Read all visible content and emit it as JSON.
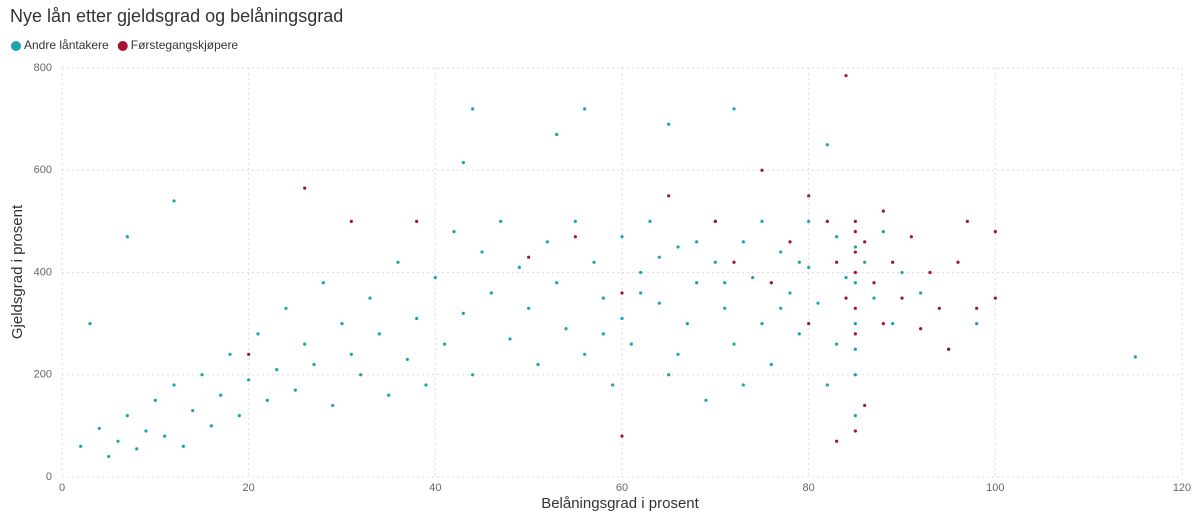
{
  "chart_data": {
    "type": "scatter",
    "title": "Nye lån etter gjeldsgrad og belåningsgrad",
    "x_label": "Belåningsgrad i prosent",
    "y_label": "Gjeldsgrad i prosent",
    "xlim": [
      0,
      120
    ],
    "xticks": [
      0,
      20,
      40,
      60,
      80,
      100,
      120
    ],
    "ylim": [
      0,
      800
    ],
    "yticks": [
      0,
      200,
      400,
      600,
      800
    ],
    "grid": true,
    "series": [
      {
        "name": "Andre låntakere",
        "color": "#19a4b4",
        "x": [
          2,
          4,
          5,
          6,
          7,
          8,
          9,
          10,
          11,
          12,
          13,
          14,
          15,
          16,
          17,
          18,
          19,
          20,
          21,
          22,
          23,
          24,
          25,
          26,
          27,
          28,
          29,
          30,
          31,
          32,
          33,
          34,
          35,
          36,
          37,
          38,
          39,
          40,
          41,
          42,
          43,
          44,
          45,
          46,
          47,
          48,
          49,
          50,
          51,
          52,
          53,
          54,
          55,
          56,
          57,
          58,
          59,
          60,
          60,
          61,
          62,
          63,
          64,
          65,
          66,
          67,
          68,
          69,
          70,
          70,
          71,
          72,
          73,
          74,
          75,
          75,
          76,
          77,
          78,
          79,
          80,
          80,
          81,
          82,
          83,
          84,
          85,
          85,
          85,
          85,
          85,
          85,
          86,
          87,
          88,
          89,
          90,
          92,
          95,
          98,
          115,
          44,
          56,
          72,
          65,
          43,
          53,
          82,
          12,
          7,
          3,
          62,
          58,
          66,
          68,
          77,
          73,
          83,
          79,
          64,
          71
        ],
        "values": [
          60,
          95,
          40,
          70,
          120,
          55,
          90,
          150,
          80,
          180,
          60,
          130,
          200,
          100,
          160,
          240,
          120,
          190,
          280,
          150,
          210,
          330,
          170,
          260,
          220,
          380,
          140,
          300,
          240,
          200,
          350,
          280,
          160,
          420,
          230,
          310,
          180,
          390,
          260,
          480,
          320,
          200,
          440,
          360,
          500,
          270,
          410,
          330,
          220,
          460,
          380,
          290,
          500,
          240,
          420,
          350,
          180,
          470,
          310,
          260,
          400,
          500,
          340,
          200,
          450,
          300,
          380,
          150,
          500,
          420,
          330,
          260,
          460,
          390,
          500,
          300,
          220,
          440,
          360,
          280,
          500,
          410,
          340,
          180,
          470,
          390,
          300,
          250,
          450,
          120,
          380,
          200,
          420,
          350,
          480,
          300,
          400,
          360,
          250,
          300,
          235,
          720,
          720,
          720,
          690,
          615,
          670,
          650,
          540,
          470,
          300,
          360,
          280,
          240,
          460,
          330,
          180,
          260,
          420,
          430,
          380
        ]
      },
      {
        "name": "Førstegangskjøpere",
        "color": "#a3122f",
        "x": [
          26,
          31,
          38,
          50,
          55,
          60,
          65,
          70,
          72,
          75,
          76,
          78,
          80,
          80,
          82,
          83,
          84,
          85,
          85,
          85,
          85,
          85,
          85,
          86,
          87,
          88,
          88,
          89,
          90,
          91,
          92,
          93,
          94,
          95,
          96,
          97,
          98,
          100,
          100,
          84,
          85,
          86,
          83,
          60,
          20
        ],
        "values": [
          565,
          500,
          500,
          430,
          470,
          360,
          550,
          500,
          420,
          600,
          380,
          460,
          550,
          300,
          500,
          420,
          350,
          480,
          500,
          400,
          330,
          280,
          440,
          460,
          380,
          300,
          520,
          420,
          350,
          470,
          290,
          400,
          330,
          250,
          420,
          500,
          330,
          480,
          350,
          785,
          90,
          140,
          70,
          80,
          240
        ]
      }
    ]
  }
}
